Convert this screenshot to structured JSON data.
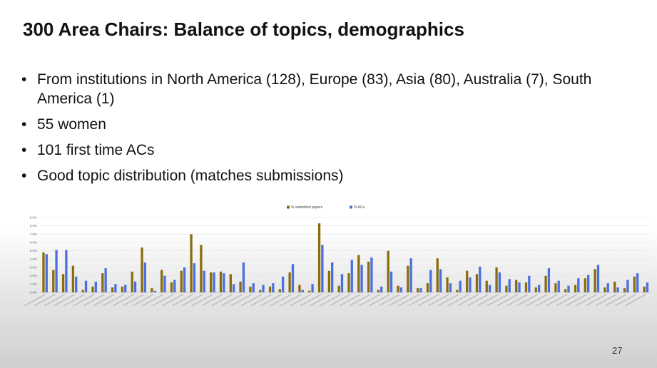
{
  "slide": {
    "title": "300 Area Chairs: Balance of topics, demographics",
    "bullets": [
      "From institutions in North America (128), Europe (83), Asia (80), Australia (7), South America (1)",
      "55 women",
      "101 first time ACs",
      "Good topic distribution (matches submissions)"
    ],
    "page_number": "27"
  },
  "chart_data": {
    "type": "bar",
    "legend_position": "top-center",
    "grid": true,
    "ylim": [
      0,
      9
    ],
    "y_ticks": [
      "0.0%",
      "1.0%",
      "2.0%",
      "3.0%",
      "4.0%",
      "5.0%",
      "6.0%",
      "7.0%",
      "8.0%",
      "9.0%"
    ],
    "categories": [
      "c1",
      "c2",
      "c3",
      "c4",
      "c5",
      "c6",
      "c7",
      "c8",
      "c9",
      "c10",
      "c11",
      "c12",
      "c13",
      "c14",
      "c15",
      "c16",
      "c17",
      "c18",
      "c19",
      "c20",
      "c21",
      "c22",
      "c23",
      "c24",
      "c25",
      "c26",
      "c27",
      "c28",
      "c29",
      "c30",
      "c31",
      "c32",
      "c33",
      "c34",
      "c35",
      "c36",
      "c37",
      "c38",
      "c39",
      "c40",
      "c41",
      "c42",
      "c43",
      "c44",
      "c45",
      "c46",
      "c47",
      "c48",
      "c49",
      "c50",
      "c51",
      "c52",
      "c53",
      "c54",
      "c55",
      "c56",
      "c57",
      "c58",
      "c59",
      "c60",
      "c61",
      "c62"
    ],
    "series": [
      {
        "name": "% submitted papers",
        "color": "#8a6d0b",
        "values": [
          4.8,
          2.7,
          2.2,
          3.2,
          0.3,
          0.7,
          2.3,
          0.6,
          0.7,
          2.5,
          5.4,
          0.5,
          2.7,
          1.2,
          2.6,
          7.0,
          5.7,
          2.4,
          2.5,
          2.2,
          1.3,
          0.7,
          0.3,
          0.7,
          0.4,
          2.4,
          0.9,
          0.2,
          8.3,
          2.6,
          0.8,
          2.3,
          4.5,
          3.7,
          0.3,
          5.0,
          0.8,
          3.2,
          0.5,
          1.1,
          4.1,
          1.8,
          0.3,
          2.6,
          2.2,
          1.4,
          3.0,
          0.8,
          1.5,
          1.2,
          0.6,
          2.0,
          1.1,
          0.4,
          0.9,
          1.7,
          2.8,
          0.6,
          1.3,
          0.5,
          1.9,
          0.7
        ]
      },
      {
        "name": "% ACs",
        "color": "#4a6fe0",
        "values": [
          4.6,
          5.1,
          5.1,
          1.9,
          1.4,
          1.3,
          2.9,
          1.0,
          0.9,
          1.3,
          3.6,
          0.2,
          2.0,
          1.5,
          3.0,
          3.5,
          2.6,
          2.4,
          2.3,
          1.0,
          3.6,
          1.1,
          0.9,
          1.1,
          1.9,
          3.4,
          0.3,
          1.0,
          5.7,
          3.6,
          2.2,
          3.9,
          3.3,
          4.2,
          0.7,
          2.5,
          0.6,
          4.1,
          0.5,
          2.7,
          2.8,
          1.1,
          1.4,
          1.8,
          3.1,
          0.9,
          2.4,
          1.6,
          1.2,
          2.0,
          0.9,
          2.9,
          1.4,
          0.8,
          1.7,
          2.1,
          3.3,
          1.1,
          0.6,
          1.5,
          2.3,
          1.2
        ]
      }
    ]
  }
}
